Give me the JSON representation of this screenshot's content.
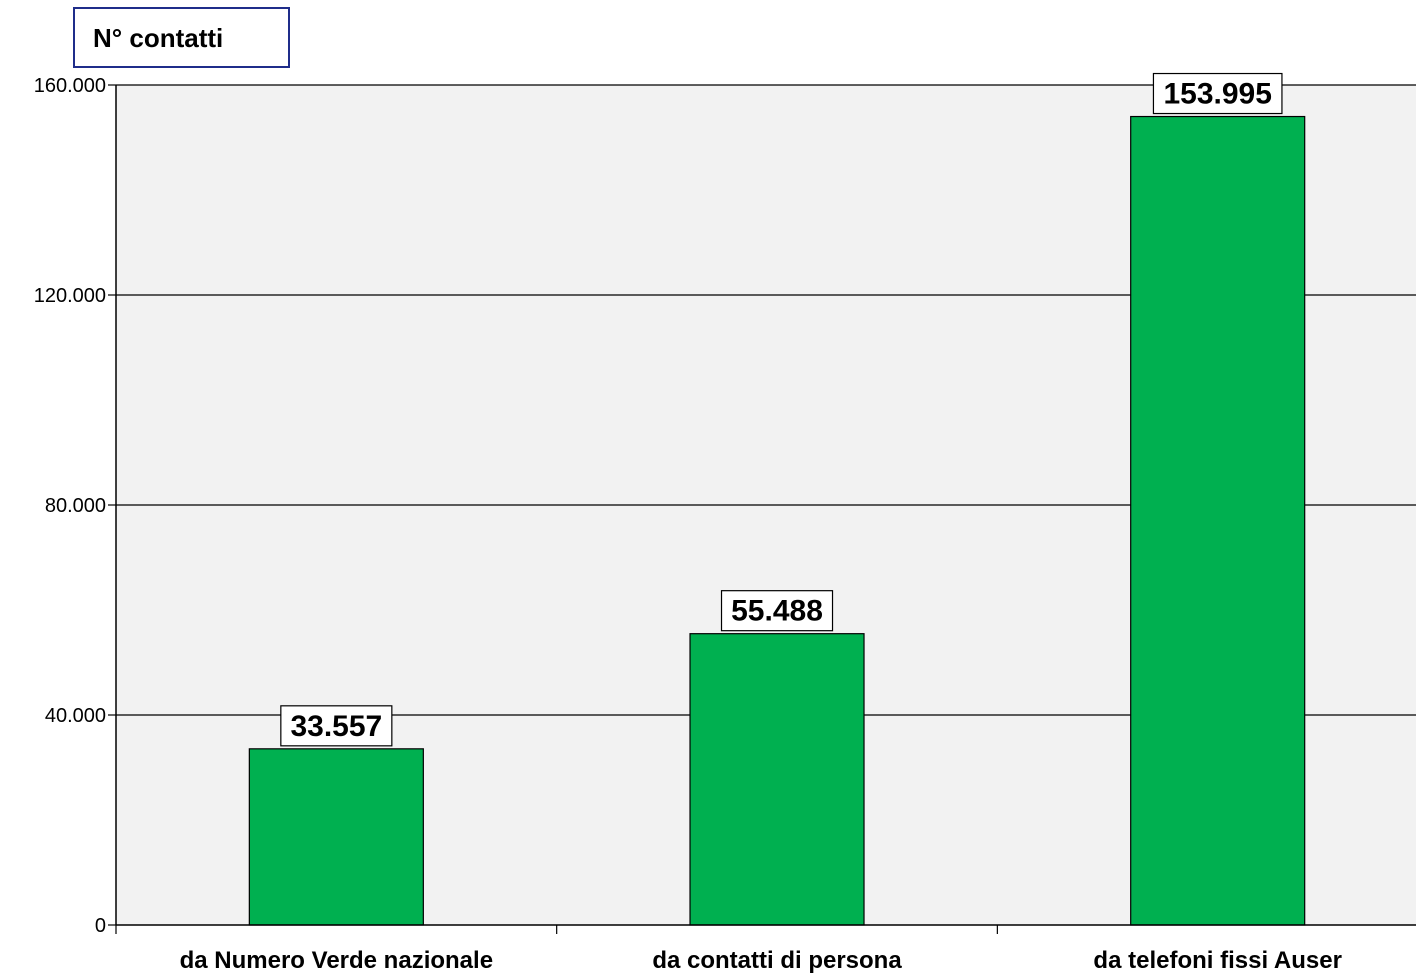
{
  "chart_data": {
    "type": "bar",
    "title": "N° contatti",
    "xlabel": "",
    "ylabel": "",
    "categories": [
      "da Numero Verde nazionale",
      "da contatti di persona",
      "da telefoni fissi Auser"
    ],
    "values": [
      33557,
      55488,
      153995
    ],
    "data_labels": [
      "33.557",
      "55.488",
      "153.995"
    ],
    "ylim": [
      0,
      160000
    ],
    "yticks": [
      0,
      40000,
      80000,
      120000,
      160000
    ],
    "ytick_labels": [
      "0",
      "40.000",
      "80.000",
      "120.000",
      "160.000"
    ],
    "grid": true,
    "legend": "none",
    "colors": {
      "bar": "#00b050",
      "plot_bg": "#f2f2f2",
      "title_border": "#1f2d8a"
    }
  }
}
